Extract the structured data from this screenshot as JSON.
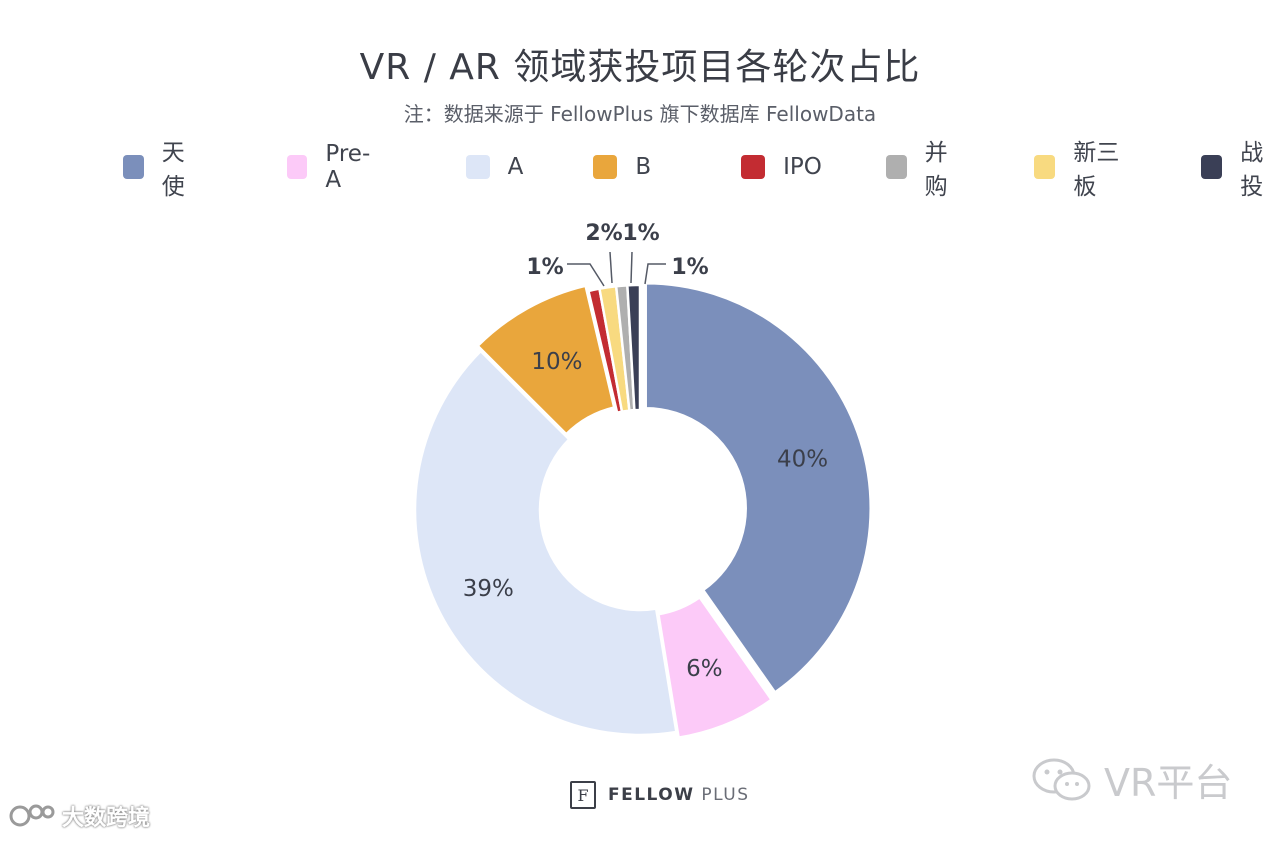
{
  "chart_data": {
    "type": "pie",
    "style": "donut",
    "title": "VR / AR 领域获投项目各轮次占比",
    "subtitle": "注：数据来源于 FellowPlus 旗下数据库 FellowData",
    "legend_position": "top",
    "categories": [
      "天使",
      "Pre-A",
      "A",
      "B",
      "IPO",
      "并购",
      "新三板",
      "战投"
    ],
    "values": [
      40,
      6,
      39,
      10,
      1,
      1,
      2,
      1
    ],
    "labels": [
      "40%",
      "6%",
      "39%",
      "10%",
      "1%",
      "1%",
      "2%",
      "1%"
    ],
    "colors": [
      "#7b8fbb",
      "#fccaf8",
      "#dde6f7",
      "#e9a63c",
      "#c32c32",
      "#afafaf",
      "#f8da80",
      "#3a3f56"
    ]
  },
  "footer": {
    "logo_mark": "F",
    "logo_bold": "FELLOW",
    "logo_light": "PLUS"
  },
  "watermarks": {
    "right": "VR平台",
    "left": "大数跨境"
  }
}
